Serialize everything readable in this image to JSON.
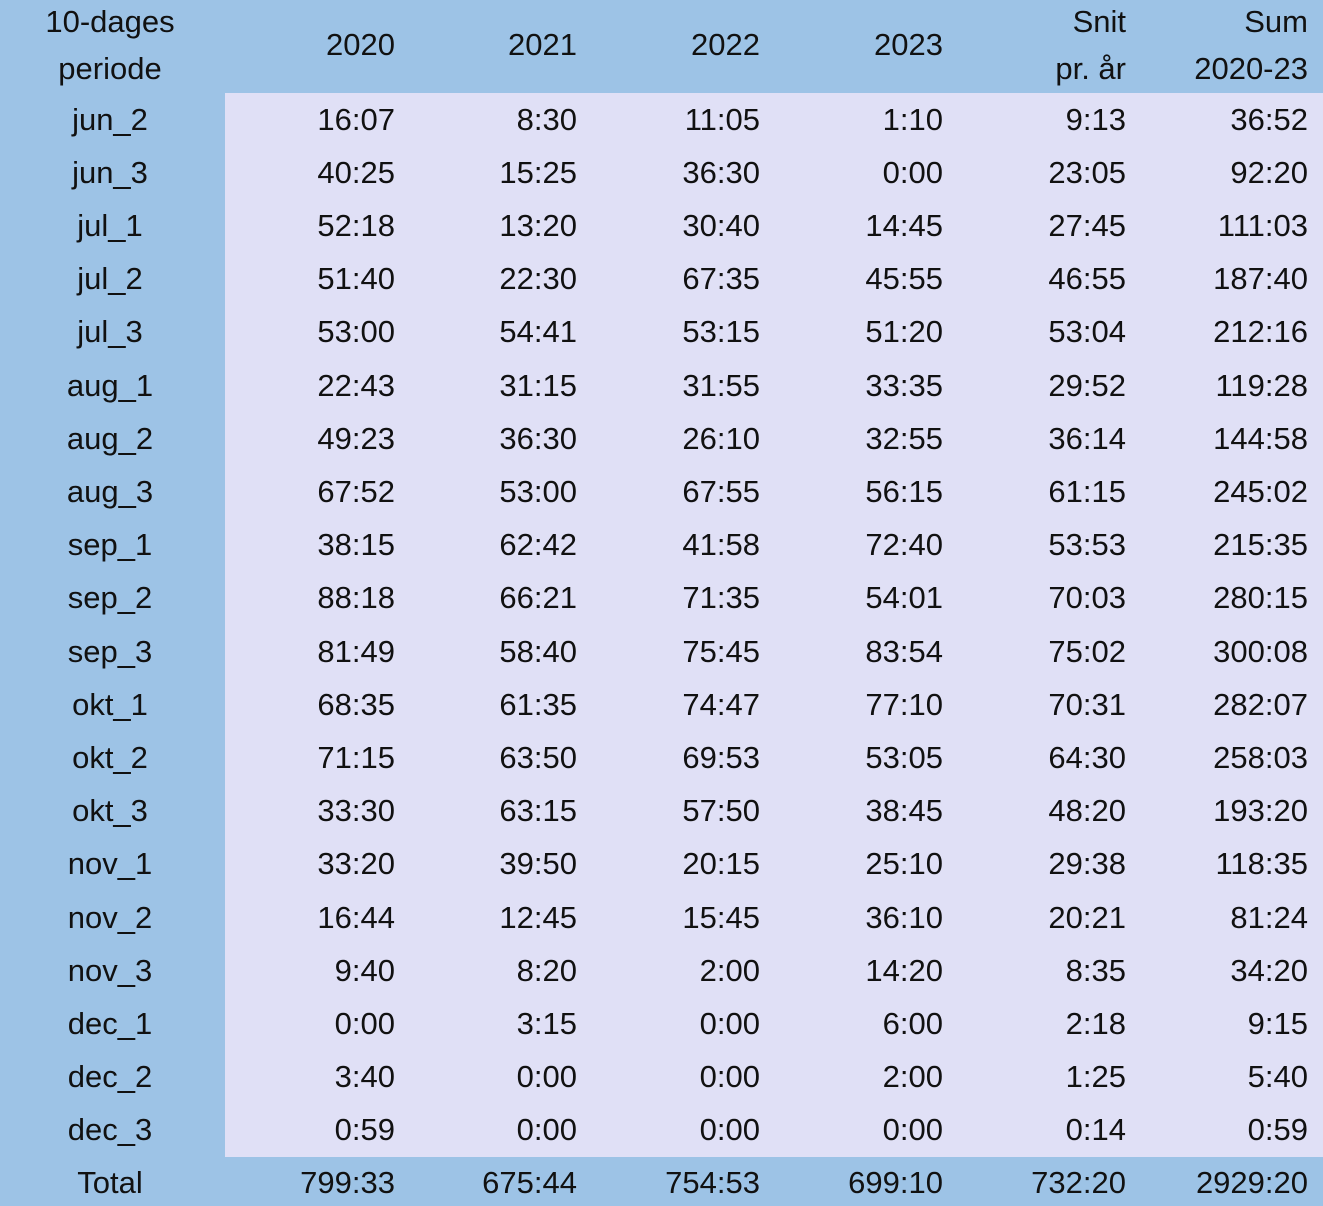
{
  "table": {
    "header": [
      [
        "10-dages",
        "periode"
      ],
      [
        "2020"
      ],
      [
        "2021"
      ],
      [
        "2022"
      ],
      [
        "2023"
      ],
      [
        "Snit",
        "pr. år"
      ],
      [
        "Sum",
        "2020-23"
      ]
    ],
    "rows": [
      [
        "jun_2",
        "16:07",
        "8:30",
        "11:05",
        "1:10",
        "9:13",
        "36:52"
      ],
      [
        "jun_3",
        "40:25",
        "15:25",
        "36:30",
        "0:00",
        "23:05",
        "92:20"
      ],
      [
        "jul_1",
        "52:18",
        "13:20",
        "30:40",
        "14:45",
        "27:45",
        "111:03"
      ],
      [
        "jul_2",
        "51:40",
        "22:30",
        "67:35",
        "45:55",
        "46:55",
        "187:40"
      ],
      [
        "jul_3",
        "53:00",
        "54:41",
        "53:15",
        "51:20",
        "53:04",
        "212:16"
      ],
      [
        "aug_1",
        "22:43",
        "31:15",
        "31:55",
        "33:35",
        "29:52",
        "119:28"
      ],
      [
        "aug_2",
        "49:23",
        "36:30",
        "26:10",
        "32:55",
        "36:14",
        "144:58"
      ],
      [
        "aug_3",
        "67:52",
        "53:00",
        "67:55",
        "56:15",
        "61:15",
        "245:02"
      ],
      [
        "sep_1",
        "38:15",
        "62:42",
        "41:58",
        "72:40",
        "53:53",
        "215:35"
      ],
      [
        "sep_2",
        "88:18",
        "66:21",
        "71:35",
        "54:01",
        "70:03",
        "280:15"
      ],
      [
        "sep_3",
        "81:49",
        "58:40",
        "75:45",
        "83:54",
        "75:02",
        "300:08"
      ],
      [
        "okt_1",
        "68:35",
        "61:35",
        "74:47",
        "77:10",
        "70:31",
        "282:07"
      ],
      [
        "okt_2",
        "71:15",
        "63:50",
        "69:53",
        "53:05",
        "64:30",
        "258:03"
      ],
      [
        "okt_3",
        "33:30",
        "63:15",
        "57:50",
        "38:45",
        "48:20",
        "193:20"
      ],
      [
        "nov_1",
        "33:20",
        "39:50",
        "20:15",
        "25:10",
        "29:38",
        "118:35"
      ],
      [
        "nov_2",
        "16:44",
        "12:45",
        "15:45",
        "36:10",
        "20:21",
        "81:24"
      ],
      [
        "nov_3",
        "9:40",
        "8:20",
        "2:00",
        "14:20",
        "8:35",
        "34:20"
      ],
      [
        "dec_1",
        "0:00",
        "3:15",
        "0:00",
        "6:00",
        "2:18",
        "9:15"
      ],
      [
        "dec_2",
        "3:40",
        "0:00",
        "0:00",
        "2:00",
        "1:25",
        "5:40"
      ],
      [
        "dec_3",
        "0:59",
        "0:00",
        "0:00",
        "0:00",
        "0:14",
        "0:59"
      ]
    ],
    "total": [
      "Total",
      "799:33",
      "675:44",
      "754:53",
      "699:10",
      "732:20",
      "2929:20"
    ]
  }
}
